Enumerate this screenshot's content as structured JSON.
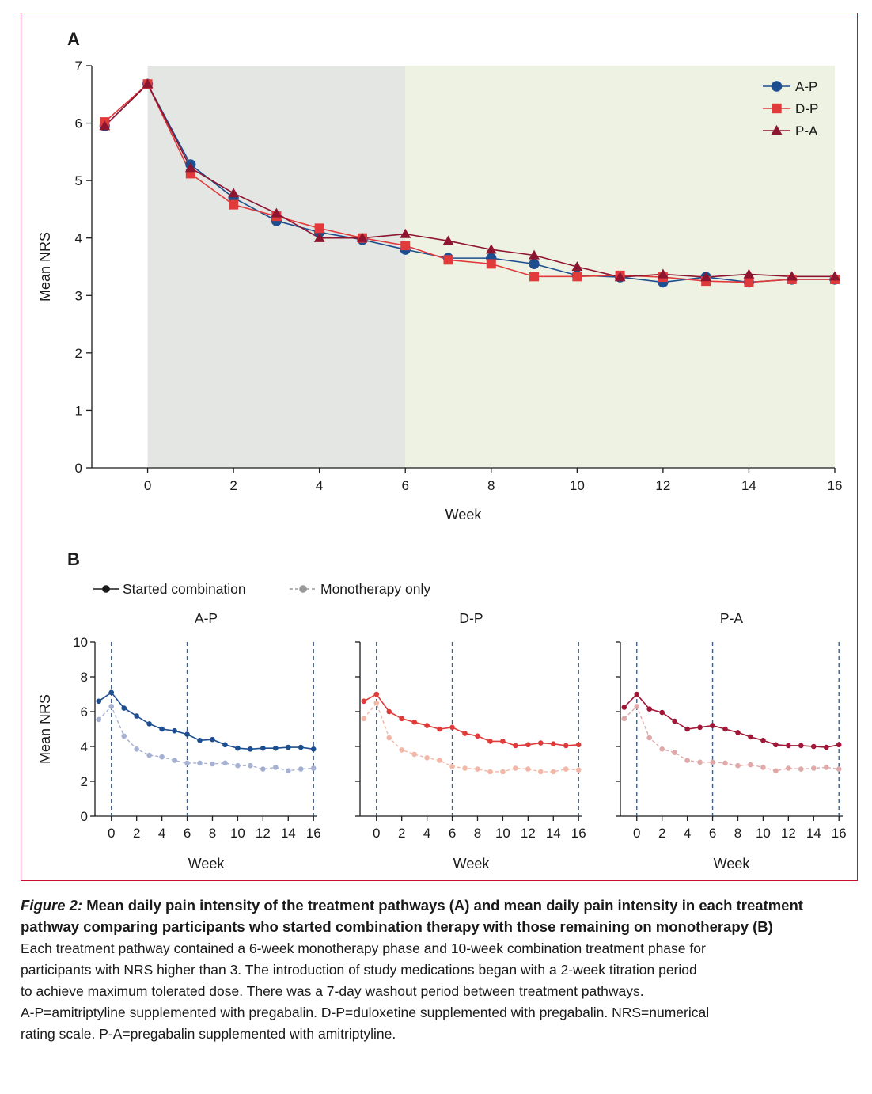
{
  "chart_data": [
    {
      "type": "line",
      "panel_label": "A",
      "xlabel": "Week",
      "ylabel": "Mean NRS",
      "xlim": [
        -1.3,
        16
      ],
      "ylim": [
        0,
        7
      ],
      "xticks": [
        0,
        2,
        4,
        6,
        8,
        10,
        12,
        14,
        16
      ],
      "yticks": [
        0,
        1,
        2,
        3,
        4,
        5,
        6,
        7
      ],
      "shaded_regions": [
        {
          "from": 0,
          "to": 6,
          "color": "#e4e6e4"
        },
        {
          "from": 6,
          "to": 16,
          "color": "#eef2e3"
        }
      ],
      "legend_position": "top-right",
      "x": [
        -1,
        0,
        1,
        2,
        3,
        4,
        5,
        6,
        7,
        8,
        9,
        10,
        11,
        12,
        13,
        14,
        15,
        16
      ],
      "series": [
        {
          "name": "A-P",
          "color": "#1d4e8f",
          "marker": "circle",
          "values": [
            5.95,
            6.68,
            5.28,
            4.7,
            4.3,
            4.1,
            3.97,
            3.8,
            3.65,
            3.65,
            3.55,
            3.35,
            3.32,
            3.23,
            3.32,
            3.23,
            3.28,
            3.28
          ]
        },
        {
          "name": "D-P",
          "color": "#e03a3a",
          "marker": "square",
          "values": [
            6.02,
            6.68,
            5.12,
            4.58,
            4.38,
            4.17,
            4.0,
            3.87,
            3.62,
            3.55,
            3.33,
            3.33,
            3.35,
            3.32,
            3.25,
            3.23,
            3.28,
            3.28
          ]
        },
        {
          "name": "P-A",
          "color": "#8e1530",
          "marker": "triangle",
          "values": [
            5.95,
            6.68,
            5.22,
            4.78,
            4.43,
            4.0,
            4.0,
            4.07,
            3.95,
            3.8,
            3.7,
            3.5,
            3.32,
            3.37,
            3.32,
            3.37,
            3.33,
            3.33
          ]
        }
      ]
    },
    {
      "type": "line",
      "panel_label": "B",
      "legend": [
        {
          "name": "Started combination",
          "color": "#1a1a1a",
          "style": "solid"
        },
        {
          "name": "Monotherapy only",
          "color": "#9a9a9a",
          "style": "dashed"
        }
      ],
      "legend_position": "top-left",
      "xlabel": "Week",
      "ylabel": "Mean NRS",
      "xlim": [
        -1.3,
        16.3
      ],
      "ylim": [
        0,
        10
      ],
      "xticks": [
        0,
        2,
        4,
        6,
        8,
        10,
        12,
        14,
        16
      ],
      "yticks": [
        0,
        2,
        4,
        6,
        8,
        10
      ],
      "vlines": [
        0,
        6,
        16
      ],
      "x": [
        -1,
        0,
        1,
        2,
        3,
        4,
        5,
        6,
        7,
        8,
        9,
        10,
        11,
        12,
        13,
        14,
        15,
        16
      ],
      "subplots": [
        {
          "title": "A-P",
          "combo_color": "#1d4e8f",
          "mono_color": "#a6b1d2",
          "series": [
            {
              "name": "Started combination",
              "values": [
                6.6,
                7.1,
                6.2,
                5.75,
                5.3,
                5.0,
                4.9,
                4.7,
                4.35,
                4.4,
                4.1,
                3.9,
                3.85,
                3.9,
                3.9,
                3.95,
                3.95,
                3.85
              ]
            },
            {
              "name": "Monotherapy only",
              "values": [
                5.55,
                6.3,
                4.6,
                3.85,
                3.5,
                3.4,
                3.2,
                3.05,
                3.05,
                3.0,
                3.05,
                2.9,
                2.9,
                2.7,
                2.8,
                2.6,
                2.7,
                2.75
              ]
            }
          ]
        },
        {
          "title": "D-P",
          "combo_color": "#e03a3a",
          "mono_color": "#f2b7a6",
          "series": [
            {
              "name": "Started combination",
              "values": [
                6.6,
                7.0,
                6.0,
                5.6,
                5.4,
                5.2,
                5.0,
                5.1,
                4.75,
                4.6,
                4.3,
                4.3,
                4.05,
                4.1,
                4.2,
                4.15,
                4.05,
                4.1
              ]
            },
            {
              "name": "Monotherapy only",
              "values": [
                5.6,
                6.5,
                4.5,
                3.8,
                3.55,
                3.35,
                3.2,
                2.85,
                2.75,
                2.7,
                2.55,
                2.55,
                2.75,
                2.7,
                2.55,
                2.55,
                2.7,
                2.65
              ]
            }
          ]
        },
        {
          "title": "P-A",
          "combo_color": "#a01838",
          "mono_color": "#dfa9aa",
          "series": [
            {
              "name": "Started combination",
              "values": [
                6.25,
                7.0,
                6.15,
                5.95,
                5.45,
                5.0,
                5.1,
                5.2,
                5.0,
                4.8,
                4.55,
                4.35,
                4.1,
                4.05,
                4.05,
                4.0,
                3.95,
                4.1
              ]
            },
            {
              "name": "Monotherapy only",
              "values": [
                5.6,
                6.3,
                4.5,
                3.85,
                3.65,
                3.2,
                3.1,
                3.1,
                3.05,
                2.9,
                2.95,
                2.8,
                2.6,
                2.75,
                2.7,
                2.75,
                2.8,
                2.7
              ]
            }
          ]
        }
      ]
    }
  ],
  "caption": {
    "figure_label": "Figure 2:",
    "title": "Mean daily pain intensity of the treatment pathways (A) and mean daily pain intensity in each treatment pathway comparing participants who started combination therapy with those remaining on monotherapy (B)",
    "lines": [
      "Each treatment pathway contained a 6-week monotherapy phase and 10-week combination treatment phase for",
      "participants with NRS higher than 3. The introduction of study medications began with a 2-week titration period",
      "to achieve maximum tolerated dose. There was a 7-day washout period between treatment pathways.",
      "A-P=amitriptyline supplemented with pregabalin. D-P=duloxetine supplemented with pregabalin. NRS=numerical",
      "rating scale. P-A=pregabalin supplemented with amitriptyline."
    ]
  }
}
